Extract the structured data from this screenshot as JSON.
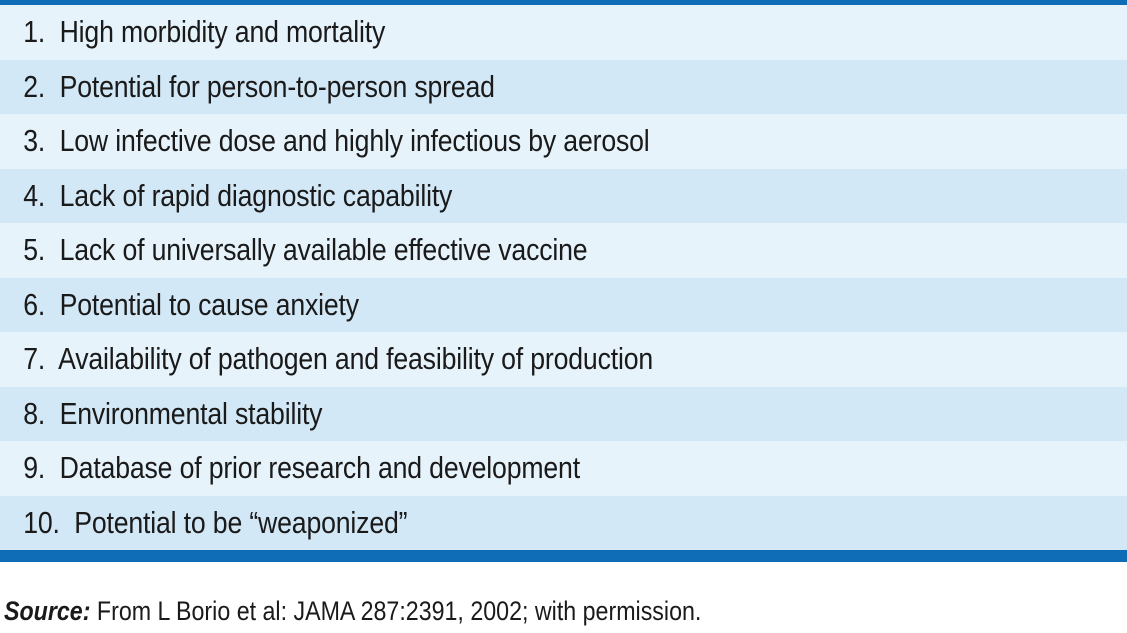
{
  "table": {
    "rows": [
      "1.  High morbidity and mortality",
      "2.  Potential for person-to-person spread",
      "3.  Low infective dose and highly infectious by aerosol",
      "4.  Lack of rapid diagnostic capability",
      "5.  Lack of universally available effective vaccine",
      "6.  Potential to cause anxiety",
      "7.  Availability of pathogen and feasibility of production",
      "8.  Environmental stability",
      "9.  Database of prior research and development",
      "10.  Potential to be “weaponized”"
    ]
  },
  "source": {
    "label": "Source:",
    "text": " From L Borio et al: JAMA 287:2391, 2002; with permission."
  },
  "colors": {
    "rule": "#0f6cb6",
    "row_light": "#e6f3fb",
    "row_dark": "#d3e8f6"
  }
}
